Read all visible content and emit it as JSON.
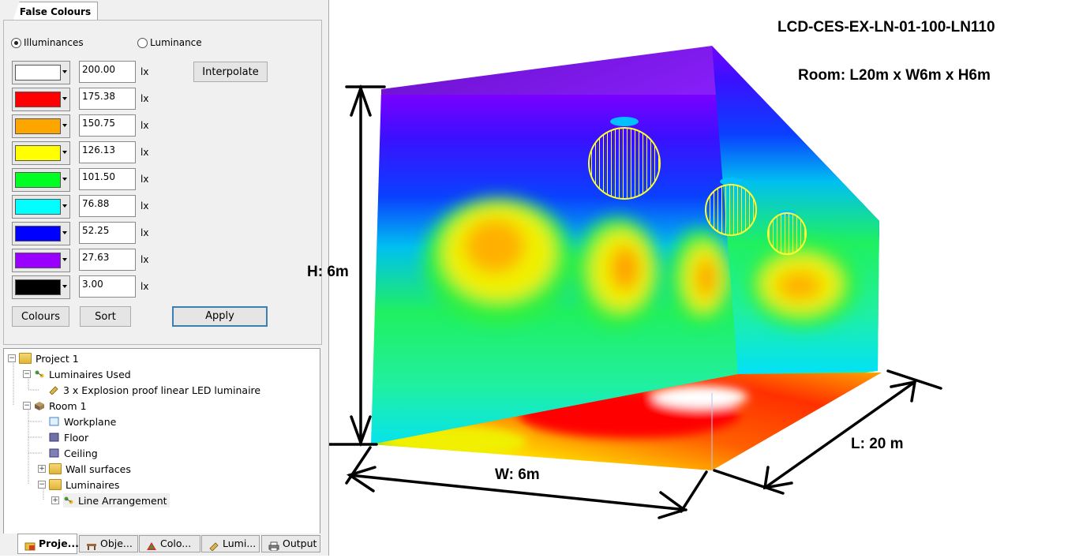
{
  "false_colours_tab": "False Colours",
  "mode": {
    "illuminances": "Illuminances",
    "luminance": "Luminance",
    "selected": "illuminances"
  },
  "legend_rows": [
    {
      "color": "#ffffff",
      "value": "200.00",
      "unit": "lx"
    },
    {
      "color": "#ff0000",
      "value": "175.38",
      "unit": "lx"
    },
    {
      "color": "#ffa500",
      "value": "150.75",
      "unit": "lx"
    },
    {
      "color": "#ffff00",
      "value": "126.13",
      "unit": "lx"
    },
    {
      "color": "#00ff22",
      "value": "101.50",
      "unit": "lx"
    },
    {
      "color": "#00ffff",
      "value": "76.88",
      "unit": "lx"
    },
    {
      "color": "#0000ff",
      "value": "52.25",
      "unit": "lx"
    },
    {
      "color": "#9900ff",
      "value": "27.63",
      "unit": "lx"
    },
    {
      "color": "#000000",
      "value": "3.00",
      "unit": "lx"
    }
  ],
  "buttons": {
    "interpolate": "Interpolate",
    "colours": "Colours",
    "sort": "Sort",
    "apply": "Apply"
  },
  "tree": {
    "project": "Project 1",
    "luminaires_used": "Luminaires Used",
    "luminaire_item": "3 x   Explosion proof linear LED luminaire",
    "room": "Room 1",
    "workplane": "Workplane",
    "floor": "Floor",
    "ceiling": "Ceiling",
    "wall_surfaces": "Wall surfaces",
    "luminaires": "Luminaires",
    "line_arrangement": "Line Arrangement"
  },
  "bottom_tabs": [
    {
      "label": "Proje...",
      "icon": "project-icon"
    },
    {
      "label": "Obje...",
      "icon": "objects-icon"
    },
    {
      "label": "Colo...",
      "icon": "colours-icon"
    },
    {
      "label": "Lumi...",
      "icon": "luminaire-icon"
    },
    {
      "label": "Output",
      "icon": "printer-icon"
    }
  ],
  "view": {
    "title": "LCD-CES-EX-LN-01-100-LN110",
    "room": "Room: L20m x W6m x H6m",
    "height_label": "H: 6m",
    "width_label": "W: 6m",
    "length_label": "L: 20 m"
  }
}
